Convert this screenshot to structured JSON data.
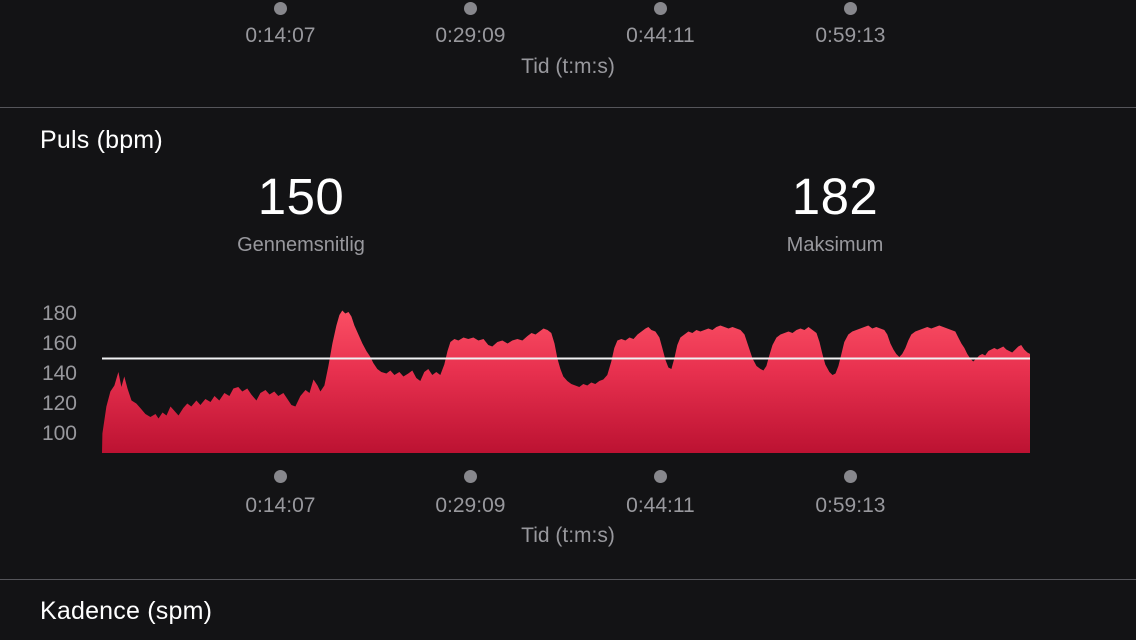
{
  "colors": {
    "background": "#131315",
    "divider": "#55555a",
    "text_primary": "#ffffff",
    "text_secondary": "#98989d",
    "tick_dot": "#87878c",
    "avg_line": "#f0f1f3",
    "area_gradient_top": "#fa4f64",
    "area_gradient_mid": "#e8314f",
    "area_gradient_bottom": "#bc1232"
  },
  "top_axis": {
    "ticks": [
      "0:14:07",
      "0:29:09",
      "0:44:11",
      "0:59:13"
    ],
    "title": "Tid (t:m:s)"
  },
  "pulse": {
    "title": "Puls (bpm)",
    "stats": [
      {
        "value": "150",
        "label": "Gennemsnitlig"
      },
      {
        "value": "182",
        "label": "Maksimum"
      }
    ],
    "x_axis": {
      "ticks": [
        "0:14:07",
        "0:29:09",
        "0:44:11",
        "0:59:13"
      ],
      "title": "Tid (t:m:s)"
    }
  },
  "cadence": {
    "title": "Kadence (spm)"
  },
  "chart_data": {
    "type": "area",
    "title": "Puls (bpm)",
    "xlabel": "Tid (t:m:s)",
    "ylabel": "Puls (bpm)",
    "x_ticks": [
      "0:14:07",
      "0:29:09",
      "0:44:11",
      "0:59:13"
    ],
    "x_tick_interval_seconds": 902,
    "y_ticks": [
      180,
      160,
      140,
      120,
      100
    ],
    "ylim": [
      87,
      190
    ],
    "total_seconds": 4407,
    "average_bpm": 150,
    "maximum_bpm": 182,
    "grid": false,
    "points_t_seconds_bpm": [
      [
        0,
        87
      ],
      [
        2,
        100
      ],
      [
        21,
        118
      ],
      [
        40,
        128
      ],
      [
        59,
        132
      ],
      [
        78,
        141
      ],
      [
        92,
        131
      ],
      [
        106,
        138
      ],
      [
        121,
        130
      ],
      [
        140,
        122
      ],
      [
        163,
        120
      ],
      [
        182,
        117
      ],
      [
        206,
        113
      ],
      [
        230,
        111
      ],
      [
        254,
        113
      ],
      [
        268,
        110
      ],
      [
        287,
        114
      ],
      [
        306,
        112
      ],
      [
        325,
        118
      ],
      [
        344,
        115
      ],
      [
        363,
        112
      ],
      [
        386,
        117
      ],
      [
        405,
        120
      ],
      [
        424,
        118
      ],
      [
        448,
        122
      ],
      [
        467,
        119
      ],
      [
        491,
        123
      ],
      [
        515,
        121
      ],
      [
        534,
        125
      ],
      [
        557,
        122
      ],
      [
        581,
        127
      ],
      [
        605,
        125
      ],
      [
        624,
        130
      ],
      [
        647,
        131
      ],
      [
        666,
        128
      ],
      [
        690,
        130
      ],
      [
        709,
        126
      ],
      [
        733,
        122
      ],
      [
        752,
        127
      ],
      [
        776,
        129
      ],
      [
        795,
        126
      ],
      [
        818,
        128
      ],
      [
        837,
        125
      ],
      [
        861,
        127
      ],
      [
        880,
        123
      ],
      [
        899,
        119
      ],
      [
        918,
        118
      ],
      [
        942,
        125
      ],
      [
        966,
        129
      ],
      [
        985,
        127
      ],
      [
        1004,
        136
      ],
      [
        1023,
        132
      ],
      [
        1037,
        128
      ],
      [
        1056,
        132
      ],
      [
        1075,
        145
      ],
      [
        1094,
        160
      ],
      [
        1113,
        172
      ],
      [
        1127,
        179
      ],
      [
        1141,
        182
      ],
      [
        1155,
        180
      ],
      [
        1170,
        181
      ],
      [
        1184,
        178
      ],
      [
        1198,
        172
      ],
      [
        1217,
        166
      ],
      [
        1236,
        160
      ],
      [
        1255,
        155
      ],
      [
        1274,
        151
      ],
      [
        1288,
        147
      ],
      [
        1307,
        143
      ],
      [
        1326,
        141
      ],
      [
        1350,
        140
      ],
      [
        1369,
        142
      ],
      [
        1388,
        139
      ],
      [
        1412,
        141
      ],
      [
        1431,
        138
      ],
      [
        1454,
        140
      ],
      [
        1473,
        142
      ],
      [
        1492,
        137
      ],
      [
        1511,
        135
      ],
      [
        1530,
        141
      ],
      [
        1549,
        143
      ],
      [
        1568,
        139
      ],
      [
        1587,
        141
      ],
      [
        1606,
        139
      ],
      [
        1625,
        146
      ],
      [
        1640,
        155
      ],
      [
        1654,
        161
      ],
      [
        1673,
        163
      ],
      [
        1692,
        162
      ],
      [
        1716,
        164
      ],
      [
        1739,
        163
      ],
      [
        1763,
        164
      ],
      [
        1787,
        162
      ],
      [
        1811,
        163
      ],
      [
        1834,
        159
      ],
      [
        1853,
        158
      ],
      [
        1877,
        161
      ],
      [
        1901,
        162
      ],
      [
        1925,
        160
      ],
      [
        1948,
        162
      ],
      [
        1972,
        163
      ],
      [
        1996,
        162
      ],
      [
        2020,
        165
      ],
      [
        2039,
        167
      ],
      [
        2058,
        166
      ],
      [
        2077,
        168
      ],
      [
        2096,
        170
      ],
      [
        2115,
        169
      ],
      [
        2133,
        167
      ],
      [
        2148,
        160
      ],
      [
        2162,
        150
      ],
      [
        2176,
        143
      ],
      [
        2190,
        138
      ],
      [
        2209,
        135
      ],
      [
        2228,
        133
      ],
      [
        2247,
        132
      ],
      [
        2266,
        131
      ],
      [
        2285,
        133
      ],
      [
        2304,
        132
      ],
      [
        2323,
        134
      ],
      [
        2342,
        133
      ],
      [
        2361,
        135
      ],
      [
        2380,
        136
      ],
      [
        2399,
        139
      ],
      [
        2418,
        148
      ],
      [
        2432,
        157
      ],
      [
        2447,
        162
      ],
      [
        2466,
        163
      ],
      [
        2485,
        162
      ],
      [
        2504,
        164
      ],
      [
        2523,
        163
      ],
      [
        2542,
        166
      ],
      [
        2561,
        168
      ],
      [
        2580,
        170
      ],
      [
        2594,
        171
      ],
      [
        2608,
        169
      ],
      [
        2627,
        168
      ],
      [
        2646,
        164
      ],
      [
        2660,
        157
      ],
      [
        2675,
        149
      ],
      [
        2689,
        144
      ],
      [
        2703,
        143
      ],
      [
        2717,
        150
      ],
      [
        2731,
        159
      ],
      [
        2746,
        164
      ],
      [
        2765,
        166
      ],
      [
        2784,
        168
      ],
      [
        2803,
        167
      ],
      [
        2822,
        169
      ],
      [
        2841,
        168
      ],
      [
        2860,
        169
      ],
      [
        2879,
        170
      ],
      [
        2898,
        169
      ],
      [
        2917,
        171
      ],
      [
        2936,
        172
      ],
      [
        2955,
        171
      ],
      [
        2974,
        170
      ],
      [
        2993,
        171
      ],
      [
        3012,
        170
      ],
      [
        3031,
        169
      ],
      [
        3050,
        166
      ],
      [
        3069,
        158
      ],
      [
        3088,
        150
      ],
      [
        3107,
        145
      ],
      [
        3126,
        143
      ],
      [
        3140,
        142
      ],
      [
        3154,
        145
      ],
      [
        3168,
        152
      ],
      [
        3183,
        159
      ],
      [
        3202,
        164
      ],
      [
        3221,
        166
      ],
      [
        3240,
        167
      ],
      [
        3259,
        168
      ],
      [
        3278,
        167
      ],
      [
        3297,
        169
      ],
      [
        3316,
        170
      ],
      [
        3335,
        169
      ],
      [
        3354,
        171
      ],
      [
        3373,
        169
      ],
      [
        3392,
        167
      ],
      [
        3406,
        161
      ],
      [
        3420,
        153
      ],
      [
        3434,
        146
      ],
      [
        3453,
        141
      ],
      [
        3468,
        139
      ],
      [
        3482,
        140
      ],
      [
        3496,
        145
      ],
      [
        3510,
        153
      ],
      [
        3524,
        161
      ],
      [
        3543,
        166
      ],
      [
        3562,
        168
      ],
      [
        3581,
        169
      ],
      [
        3600,
        170
      ],
      [
        3619,
        171
      ],
      [
        3638,
        172
      ],
      [
        3657,
        170
      ],
      [
        3676,
        171
      ],
      [
        3695,
        170
      ],
      [
        3714,
        169
      ],
      [
        3728,
        166
      ],
      [
        3743,
        160
      ],
      [
        3757,
        156
      ],
      [
        3771,
        153
      ],
      [
        3785,
        151
      ],
      [
        3799,
        153
      ],
      [
        3814,
        157
      ],
      [
        3828,
        162
      ],
      [
        3842,
        166
      ],
      [
        3861,
        168
      ],
      [
        3880,
        169
      ],
      [
        3899,
        170
      ],
      [
        3918,
        171
      ],
      [
        3937,
        170
      ],
      [
        3956,
        171
      ],
      [
        3975,
        172
      ],
      [
        3994,
        171
      ],
      [
        4013,
        170
      ],
      [
        4032,
        169
      ],
      [
        4051,
        168
      ],
      [
        4065,
        164
      ],
      [
        4080,
        160
      ],
      [
        4094,
        157
      ],
      [
        4108,
        153
      ],
      [
        4122,
        150
      ],
      [
        4136,
        148
      ],
      [
        4151,
        150
      ],
      [
        4165,
        152
      ],
      [
        4179,
        153
      ],
      [
        4193,
        152
      ],
      [
        4208,
        155
      ],
      [
        4222,
        156
      ],
      [
        4236,
        157
      ],
      [
        4250,
        156
      ],
      [
        4265,
        157
      ],
      [
        4279,
        158
      ],
      [
        4293,
        156
      ],
      [
        4307,
        155
      ],
      [
        4321,
        154
      ],
      [
        4336,
        156
      ],
      [
        4350,
        158
      ],
      [
        4364,
        159
      ],
      [
        4378,
        156
      ],
      [
        4393,
        154
      ],
      [
        4407,
        153
      ]
    ]
  }
}
